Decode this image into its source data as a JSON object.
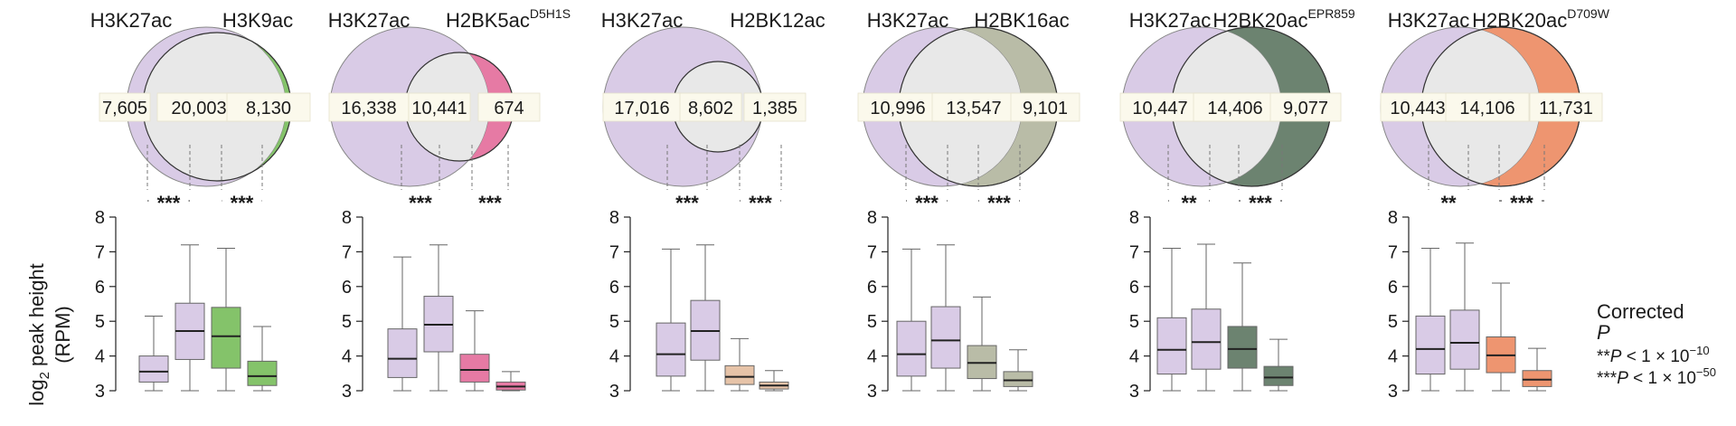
{
  "y_axis_label": {
    "main": "log",
    "sub": "2",
    "rest": " peak height",
    "unit": "(RPM)"
  },
  "colors": {
    "h3k27ac": "#d9cbe6",
    "overlap": "#e8e8e8",
    "h3k9ac": "#84c36a",
    "h2bk5ac": "#e67aa4",
    "h2bk12ac": "#e6c3a8",
    "h2bk16ac": "#b9bca7",
    "h2bk20ac_epr859": "#6c8370",
    "h2bk20ac_d709w": "#ee9570"
  },
  "legend": {
    "line1": "Corrected",
    "line2": "P",
    "line3_prefix": "**",
    "line3_p": "P",
    "line3_mid": " < 1 × 10",
    "line3_exp": "−10",
    "line4_prefix": "***",
    "line4_p": "P",
    "line4_mid": " < 1 × 10",
    "line4_exp": "−50"
  },
  "chart_data": [
    {
      "type": "box",
      "venn": {
        "left_label": "H3K27ac",
        "right_label": "H3K9ac",
        "right_sup": "",
        "left_only": "7,605",
        "overlap": "20,003",
        "right_only": "8,130",
        "right_color_key": "h3k9ac"
      },
      "significance": [
        "***",
        "***"
      ],
      "ylim": [
        3,
        8
      ],
      "yticks": [
        "3",
        "4",
        "5",
        "6",
        "7",
        "8"
      ],
      "boxes": [
        {
          "group": "h3k27ac_only",
          "color_key": "h3k27ac",
          "whisker_low": 3.0,
          "q1": 3.25,
          "median": 3.55,
          "q3": 4.0,
          "whisker_high": 5.15
        },
        {
          "group": "overlap_h3k27ac",
          "color_key": "h3k27ac",
          "whisker_low": 3.0,
          "q1": 3.9,
          "median": 4.72,
          "q3": 5.52,
          "whisker_high": 7.2
        },
        {
          "group": "overlap_partner",
          "color_key": "h3k9ac",
          "whisker_low": 3.0,
          "q1": 3.65,
          "median": 4.57,
          "q3": 5.4,
          "whisker_high": 7.1
        },
        {
          "group": "partner_only",
          "color_key": "h3k9ac",
          "whisker_low": 3.0,
          "q1": 3.15,
          "median": 3.42,
          "q3": 3.85,
          "whisker_high": 4.85
        }
      ]
    },
    {
      "type": "box",
      "venn": {
        "left_label": "H3K27ac",
        "right_label": "H2BK5ac",
        "right_sup": "D5H1S",
        "left_only": "16,338",
        "overlap": "10,441",
        "right_only": "674",
        "right_color_key": "h2bk5ac"
      },
      "significance": [
        "***",
        "***"
      ],
      "ylim": [
        3,
        8
      ],
      "yticks": [
        "3",
        "4",
        "5",
        "6",
        "7",
        "8"
      ],
      "boxes": [
        {
          "group": "h3k27ac_only",
          "color_key": "h3k27ac",
          "whisker_low": 3.0,
          "q1": 3.38,
          "median": 3.92,
          "q3": 4.78,
          "whisker_high": 6.85
        },
        {
          "group": "overlap_h3k27ac",
          "color_key": "h3k27ac",
          "whisker_low": 3.0,
          "q1": 4.12,
          "median": 4.9,
          "q3": 5.72,
          "whisker_high": 7.2
        },
        {
          "group": "overlap_partner",
          "color_key": "h2bk5ac",
          "whisker_low": 3.0,
          "q1": 3.25,
          "median": 3.6,
          "q3": 4.05,
          "whisker_high": 5.3
        },
        {
          "group": "partner_only",
          "color_key": "h2bk5ac",
          "whisker_low": 3.0,
          "q1": 3.02,
          "median": 3.12,
          "q3": 3.25,
          "whisker_high": 3.55
        }
      ]
    },
    {
      "type": "box",
      "venn": {
        "left_label": "H3K27ac",
        "right_label": "H2BK12ac",
        "right_sup": "",
        "left_only": "17,016",
        "overlap": "8,602",
        "right_only": "1,385",
        "right_color_key": "h2bk12ac"
      },
      "significance": [
        "***",
        "***"
      ],
      "ylim": [
        3,
        8
      ],
      "yticks": [
        "3",
        "4",
        "5",
        "6",
        "7",
        "8"
      ],
      "boxes": [
        {
          "group": "h3k27ac_only",
          "color_key": "h3k27ac",
          "whisker_low": 3.0,
          "q1": 3.42,
          "median": 4.05,
          "q3": 4.95,
          "whisker_high": 7.08
        },
        {
          "group": "overlap_h3k27ac",
          "color_key": "h3k27ac",
          "whisker_low": 3.0,
          "q1": 3.88,
          "median": 4.72,
          "q3": 5.6,
          "whisker_high": 7.2
        },
        {
          "group": "overlap_partner",
          "color_key": "h2bk12ac",
          "whisker_low": 3.0,
          "q1": 3.18,
          "median": 3.4,
          "q3": 3.72,
          "whisker_high": 4.5
        },
        {
          "group": "partner_only",
          "color_key": "h2bk12ac",
          "whisker_low": 3.0,
          "q1": 3.05,
          "median": 3.15,
          "q3": 3.25,
          "whisker_high": 3.58
        }
      ]
    },
    {
      "type": "box",
      "venn": {
        "left_label": "H3K27ac",
        "right_label": "H2BK16ac",
        "right_sup": "",
        "left_only": "10,996",
        "overlap": "13,547",
        "right_only": "9,101",
        "right_color_key": "h2bk16ac"
      },
      "significance": [
        "***",
        "***"
      ],
      "ylim": [
        3,
        8
      ],
      "yticks": [
        "3",
        "4",
        "5",
        "6",
        "7",
        "8"
      ],
      "boxes": [
        {
          "group": "h3k27ac_only",
          "color_key": "h3k27ac",
          "whisker_low": 3.0,
          "q1": 3.42,
          "median": 4.05,
          "q3": 5.0,
          "whisker_high": 7.08
        },
        {
          "group": "overlap_h3k27ac",
          "color_key": "h3k27ac",
          "whisker_low": 3.0,
          "q1": 3.65,
          "median": 4.45,
          "q3": 5.42,
          "whisker_high": 7.2
        },
        {
          "group": "overlap_partner",
          "color_key": "h2bk16ac",
          "whisker_low": 3.0,
          "q1": 3.35,
          "median": 3.8,
          "q3": 4.3,
          "whisker_high": 5.7
        },
        {
          "group": "partner_only",
          "color_key": "h2bk16ac",
          "whisker_low": 3.0,
          "q1": 3.12,
          "median": 3.3,
          "q3": 3.55,
          "whisker_high": 4.18
        }
      ]
    },
    {
      "type": "box",
      "venn": {
        "left_label": "H3K27ac",
        "right_label": "H2BK20ac",
        "right_sup": "EPR859",
        "left_only": "10,447",
        "overlap": "14,406",
        "right_only": "9,077",
        "right_color_key": "h2bk20ac_epr859"
      },
      "significance": [
        "**",
        "***"
      ],
      "ylim": [
        3,
        8
      ],
      "yticks": [
        "3",
        "4",
        "5",
        "6",
        "7",
        "8"
      ],
      "boxes": [
        {
          "group": "h3k27ac_only",
          "color_key": "h3k27ac",
          "whisker_low": 3.0,
          "q1": 3.48,
          "median": 4.18,
          "q3": 5.1,
          "whisker_high": 7.1
        },
        {
          "group": "overlap_h3k27ac",
          "color_key": "h3k27ac",
          "whisker_low": 3.0,
          "q1": 3.62,
          "median": 4.4,
          "q3": 5.35,
          "whisker_high": 7.22
        },
        {
          "group": "overlap_partner",
          "color_key": "h2bk20ac_epr859",
          "whisker_low": 3.0,
          "q1": 3.65,
          "median": 4.2,
          "q3": 4.85,
          "whisker_high": 6.68
        },
        {
          "group": "partner_only",
          "color_key": "h2bk20ac_epr859",
          "whisker_low": 3.0,
          "q1": 3.15,
          "median": 3.38,
          "q3": 3.7,
          "whisker_high": 4.48
        }
      ]
    },
    {
      "type": "box",
      "venn": {
        "left_label": "H3K27ac",
        "right_label": "H2BK20ac",
        "right_sup": "D709W",
        "left_only": "10,443",
        "overlap": "14,106",
        "right_only": "11,731",
        "right_color_key": "h2bk20ac_d709w"
      },
      "significance": [
        "**",
        "***"
      ],
      "ylim": [
        3,
        8
      ],
      "yticks": [
        "3",
        "4",
        "5",
        "6",
        "7",
        "8"
      ],
      "boxes": [
        {
          "group": "h3k27ac_only",
          "color_key": "h3k27ac",
          "whisker_low": 3.0,
          "q1": 3.48,
          "median": 4.2,
          "q3": 5.15,
          "whisker_high": 7.1
        },
        {
          "group": "overlap_h3k27ac",
          "color_key": "h3k27ac",
          "whisker_low": 3.0,
          "q1": 3.62,
          "median": 4.38,
          "q3": 5.32,
          "whisker_high": 7.25
        },
        {
          "group": "overlap_partner",
          "color_key": "h2bk20ac_d709w",
          "whisker_low": 3.0,
          "q1": 3.52,
          "median": 4.02,
          "q3": 4.55,
          "whisker_high": 6.1
        },
        {
          "group": "partner_only",
          "color_key": "h2bk20ac_d709w",
          "whisker_low": 3.0,
          "q1": 3.12,
          "median": 3.32,
          "q3": 3.58,
          "whisker_high": 4.22
        }
      ]
    }
  ]
}
